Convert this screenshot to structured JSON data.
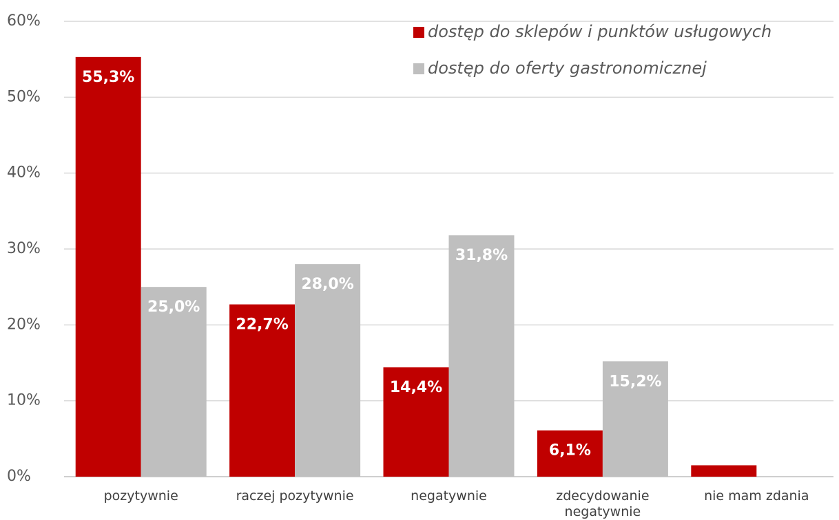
{
  "chart_data": {
    "type": "bar",
    "categories": [
      "pozytywnie",
      "raczej pozytywnie",
      "negatywnie",
      "zdecydowanie negatywnie",
      "nie mam zdania"
    ],
    "series": [
      {
        "name": "dostęp do sklepów i punktów usługowych",
        "color": "#c00000",
        "values": [
          55.3,
          22.7,
          14.4,
          6.1,
          1.5
        ],
        "value_labels": [
          "55,3%",
          "22,7%",
          "14,4%",
          "6,1%",
          null
        ]
      },
      {
        "name": "dostęp do oferty gastronomicznej",
        "color": "#bfbfbf",
        "values": [
          25.0,
          28.0,
          31.8,
          15.2,
          null
        ],
        "value_labels": [
          "25,0%",
          "28,0%",
          "31,8%",
          "15,2%",
          null
        ]
      }
    ],
    "ylim": [
      0,
      60
    ],
    "yticks": [
      {
        "value": 0,
        "label": "0%"
      },
      {
        "value": 10,
        "label": "10%"
      },
      {
        "value": 20,
        "label": "20%"
      },
      {
        "value": 30,
        "label": "30%"
      },
      {
        "value": 40,
        "label": "40%"
      },
      {
        "value": 50,
        "label": "50%"
      },
      {
        "value": 60,
        "label": "60%"
      }
    ],
    "grid": true,
    "legend": "top-right"
  }
}
